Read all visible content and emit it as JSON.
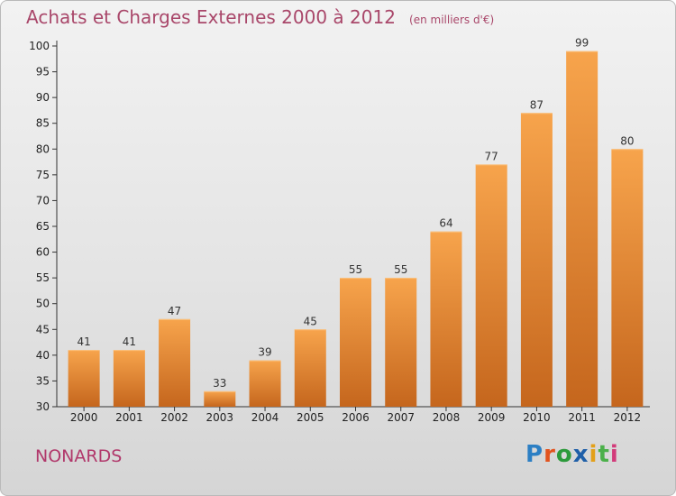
{
  "header": {
    "title": "Achats et Charges Externes 2000 à 2012",
    "unit": "(en milliers d'€)"
  },
  "footer": {
    "commune": "NONARDS",
    "logo_text": [
      "P",
      "r",
      "o",
      "x",
      "i",
      "t",
      "i"
    ],
    "logo_colors": [
      "#2c7fc4",
      "#e2531e",
      "#2c9a3b",
      "#1f5fa8",
      "#e3a019",
      "#4bb04a",
      "#d23b7a"
    ]
  },
  "colors": {
    "bar_top": "#f7a44c",
    "bar_bottom": "#c5661d",
    "title": "#a9476a"
  },
  "chart_data": {
    "type": "bar",
    "title": "Achats et Charges Externes 2000 à 2012",
    "categories": [
      "2000",
      "2001",
      "2002",
      "2003",
      "2004",
      "2005",
      "2006",
      "2007",
      "2008",
      "2009",
      "2010",
      "2011",
      "2012"
    ],
    "values": [
      41,
      41,
      47,
      33,
      39,
      45,
      55,
      55,
      64,
      77,
      87,
      99,
      80
    ],
    "ylim": [
      30,
      100
    ],
    "yticks": [
      30,
      35,
      40,
      45,
      50,
      55,
      60,
      65,
      70,
      75,
      80,
      85,
      90,
      95,
      100
    ],
    "grid": false,
    "data_labels": true
  }
}
